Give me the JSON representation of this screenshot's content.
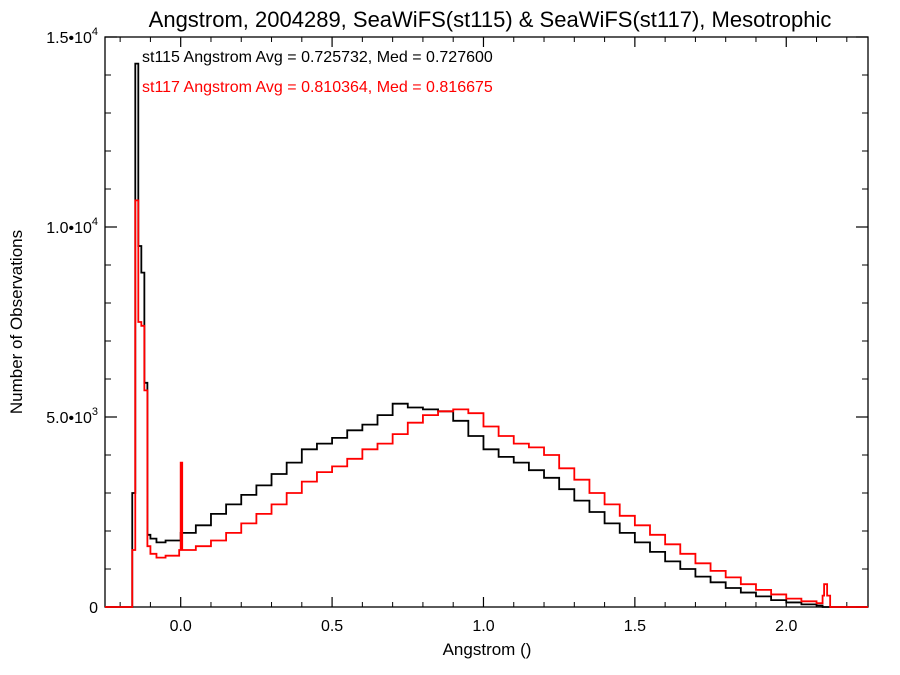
{
  "chart_data": {
    "type": "line",
    "title": "Angstrom, 2004289, SeaWiFS(st115) & SeaWiFS(st117), Mesotrophic",
    "xlabel": "Angstrom ()",
    "ylabel": "Number of Observations",
    "xlim": [
      -0.25,
      2.27
    ],
    "ylim": [
      0,
      15000
    ],
    "x_ticks": [
      0.0,
      0.5,
      1.0,
      1.5,
      2.0
    ],
    "x_tick_labels": [
      "0.0",
      "0.5",
      "1.0",
      "1.5",
      "2.0"
    ],
    "y_ticks": [
      0,
      5000,
      10000,
      15000
    ],
    "y_tick_labels": [
      {
        "mantissa": "0",
        "exponent": ""
      },
      {
        "mantissa": "5.0•10",
        "exponent": "3"
      },
      {
        "mantissa": "1.0•10",
        "exponent": "4"
      },
      {
        "mantissa": "1.5•10",
        "exponent": "4"
      }
    ],
    "grid": false,
    "annotations": [
      {
        "text": "st115 Angstrom Avg = 0.725732, Med = 0.727600",
        "color": "#000000"
      },
      {
        "text": "st117 Angstrom Avg = 0.810364, Med = 0.816675",
        "color": "#ff0000"
      }
    ],
    "series": [
      {
        "color": "#000000",
        "x": [
          -0.25,
          -0.165,
          -0.16,
          -0.15,
          -0.14,
          -0.13,
          -0.12,
          -0.11,
          -0.1,
          -0.08,
          -0.05,
          0.0,
          0.05,
          0.1,
          0.15,
          0.2,
          0.25,
          0.3,
          0.35,
          0.4,
          0.45,
          0.5,
          0.55,
          0.6,
          0.65,
          0.7,
          0.75,
          0.8,
          0.85,
          0.9,
          0.95,
          1.0,
          1.05,
          1.1,
          1.15,
          1.2,
          1.25,
          1.3,
          1.35,
          1.4,
          1.45,
          1.5,
          1.55,
          1.6,
          1.65,
          1.7,
          1.75,
          1.8,
          1.85,
          1.9,
          1.95,
          2.0,
          2.05,
          2.1,
          2.12,
          2.13,
          2.15,
          2.27
        ],
        "y": [
          0,
          0,
          3000,
          14300,
          9500,
          8800,
          5900,
          1900,
          1800,
          1700,
          1750,
          1950,
          2150,
          2450,
          2700,
          2950,
          3200,
          3500,
          3800,
          4150,
          4300,
          4450,
          4650,
          4800,
          5050,
          5350,
          5250,
          5200,
          5150,
          4900,
          4500,
          4150,
          3950,
          3800,
          3600,
          3400,
          3100,
          2800,
          2500,
          2200,
          1950,
          1700,
          1450,
          1200,
          1000,
          800,
          650,
          500,
          380,
          280,
          180,
          120,
          70,
          40,
          0,
          0,
          0,
          0
        ]
      },
      {
        "color": "#ff0000",
        "x": [
          -0.25,
          -0.165,
          -0.16,
          -0.15,
          -0.14,
          -0.13,
          -0.12,
          -0.11,
          -0.1,
          -0.08,
          -0.05,
          -0.005,
          0.0,
          0.005,
          0.05,
          0.1,
          0.15,
          0.2,
          0.25,
          0.3,
          0.35,
          0.4,
          0.45,
          0.5,
          0.55,
          0.6,
          0.65,
          0.7,
          0.75,
          0.8,
          0.85,
          0.9,
          0.95,
          1.0,
          1.05,
          1.1,
          1.15,
          1.2,
          1.25,
          1.3,
          1.35,
          1.4,
          1.45,
          1.5,
          1.55,
          1.6,
          1.65,
          1.7,
          1.75,
          1.8,
          1.85,
          1.9,
          1.95,
          2.0,
          2.05,
          2.1,
          2.12,
          2.125,
          2.135,
          2.145,
          2.15,
          2.27
        ],
        "y": [
          0,
          0,
          1500,
          10700,
          7500,
          7400,
          5700,
          1600,
          1400,
          1300,
          1350,
          1500,
          3800,
          1500,
          1600,
          1750,
          1950,
          2200,
          2450,
          2700,
          3000,
          3300,
          3550,
          3700,
          3900,
          4150,
          4300,
          4550,
          4850,
          5050,
          5150,
          5200,
          5100,
          4750,
          4500,
          4300,
          4200,
          4000,
          3650,
          3350,
          3000,
          2700,
          2400,
          2150,
          1900,
          1650,
          1400,
          1150,
          950,
          780,
          600,
          450,
          330,
          220,
          150,
          100,
          300,
          600,
          300,
          0,
          0,
          0
        ]
      }
    ]
  }
}
